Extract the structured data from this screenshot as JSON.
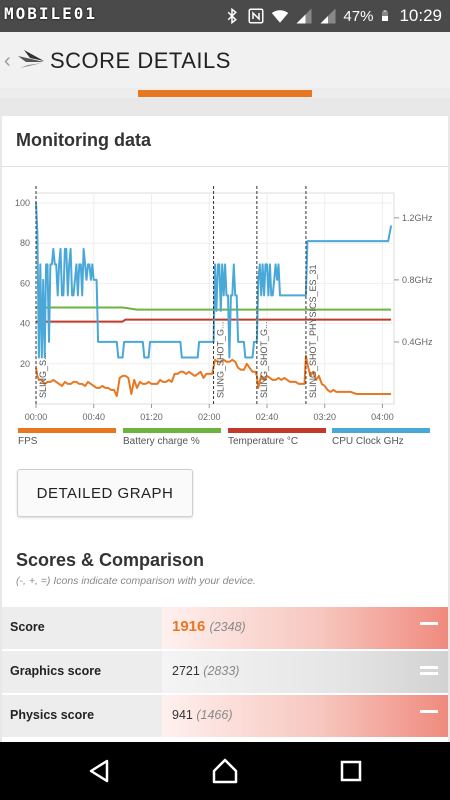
{
  "status_bar": {
    "watermark": "MOBILE01",
    "battery_pct": "47%",
    "time": "10:29",
    "icons": [
      "bluetooth-icon",
      "nfc-icon",
      "wifi-icon",
      "signal-icon",
      "signal-icon",
      "battery-icon"
    ]
  },
  "app_bar": {
    "title": "SCORE DETAILS",
    "back_glyph": "‹",
    "accent": "#e87722"
  },
  "monitoring": {
    "title": "Monitoring data",
    "button_label": "DETAILED GRAPH",
    "legend": [
      {
        "name": "FPS",
        "color": "#e87722"
      },
      {
        "name": "Battery charge %",
        "color": "#6cb33f"
      },
      {
        "name": "Temperature °C",
        "color": "#c0392b"
      },
      {
        "name": "CPU Clock GHz",
        "color": "#4aa8d8"
      }
    ]
  },
  "chart_data": {
    "type": "line",
    "x_tick_labels": [
      "00:00",
      "00:40",
      "01:20",
      "02:00",
      "02:40",
      "03:20",
      "04:00"
    ],
    "x_ticks_sec": [
      0,
      40,
      80,
      120,
      160,
      200,
      240
    ],
    "xlim_sec": [
      0,
      248
    ],
    "y_left_ticks": [
      20,
      40,
      60,
      80,
      100
    ],
    "ylim_left": [
      0,
      105
    ],
    "y_right_ticks": [
      0.4,
      0.8,
      1.2
    ],
    "y_right_tick_labels": [
      "0.4GHz",
      "0.8GHz",
      "1.2GHz"
    ],
    "ylim_right": [
      0,
      1.36
    ],
    "grid": true,
    "markers": [
      {
        "x_sec": 0,
        "label": "SLING_S..."
      },
      {
        "x_sec": 123,
        "label": "SLING_SHOT_G..."
      },
      {
        "x_sec": 153,
        "label": "SLING_SHOT_G..."
      },
      {
        "x_sec": 187,
        "label": "SLING_SHOT_PHYSICS_ES_31"
      }
    ],
    "series": [
      {
        "name": "FPS",
        "axis": "left",
        "points": [
          [
            0,
            18
          ],
          [
            1,
            14
          ],
          [
            2,
            12
          ],
          [
            4,
            12
          ],
          [
            6,
            10
          ],
          [
            8,
            11
          ],
          [
            10,
            11
          ],
          [
            12,
            12
          ],
          [
            14,
            11
          ],
          [
            16,
            10
          ],
          [
            18,
            9
          ],
          [
            20,
            11
          ],
          [
            22,
            10
          ],
          [
            24,
            10
          ],
          [
            26,
            11
          ],
          [
            28,
            11
          ],
          [
            30,
            10
          ],
          [
            32,
            10
          ],
          [
            34,
            9
          ],
          [
            36,
            11
          ],
          [
            38,
            10
          ],
          [
            40,
            9
          ],
          [
            42,
            8
          ],
          [
            44,
            8
          ],
          [
            46,
            9
          ],
          [
            48,
            8
          ],
          [
            50,
            8
          ],
          [
            52,
            7
          ],
          [
            54,
            7
          ],
          [
            56,
            4
          ],
          [
            58,
            13
          ],
          [
            60,
            14
          ],
          [
            62,
            14
          ],
          [
            64,
            13
          ],
          [
            66,
            5
          ],
          [
            68,
            12
          ],
          [
            70,
            8
          ],
          [
            72,
            11
          ],
          [
            74,
            10
          ],
          [
            76,
            10
          ],
          [
            78,
            11
          ],
          [
            80,
            10
          ],
          [
            82,
            10
          ],
          [
            84,
            10
          ],
          [
            86,
            12
          ],
          [
            88,
            11
          ],
          [
            90,
            11
          ],
          [
            92,
            12
          ],
          [
            94,
            11
          ],
          [
            96,
            15
          ],
          [
            98,
            15
          ],
          [
            100,
            16
          ],
          [
            102,
            16
          ],
          [
            104,
            15
          ],
          [
            106,
            16
          ],
          [
            108,
            15
          ],
          [
            110,
            14
          ],
          [
            112,
            15
          ],
          [
            114,
            16
          ],
          [
            116,
            13
          ],
          [
            118,
            15
          ],
          [
            120,
            15
          ],
          [
            122,
            15
          ],
          [
            124,
            22
          ],
          [
            126,
            21
          ],
          [
            128,
            21
          ],
          [
            130,
            22
          ],
          [
            132,
            21
          ],
          [
            134,
            21
          ],
          [
            136,
            22
          ],
          [
            138,
            21
          ],
          [
            140,
            18
          ],
          [
            142,
            17
          ],
          [
            144,
            17
          ],
          [
            146,
            20
          ],
          [
            148,
            18
          ],
          [
            150,
            16
          ],
          [
            152,
            16
          ],
          [
            153,
            14
          ],
          [
            154,
            8
          ],
          [
            156,
            14
          ],
          [
            158,
            12
          ],
          [
            160,
            14
          ],
          [
            162,
            13
          ],
          [
            164,
            12
          ],
          [
            166,
            12
          ],
          [
            168,
            13
          ],
          [
            170,
            12
          ],
          [
            172,
            13
          ],
          [
            174,
            12
          ],
          [
            176,
            11
          ],
          [
            178,
            11
          ],
          [
            180,
            11
          ],
          [
            182,
            10
          ],
          [
            184,
            10
          ],
          [
            186,
            10
          ],
          [
            187,
            24
          ],
          [
            188,
            20
          ],
          [
            190,
            14
          ],
          [
            192,
            16
          ],
          [
            194,
            12
          ],
          [
            196,
            14
          ],
          [
            198,
            10
          ],
          [
            200,
            9
          ],
          [
            202,
            7
          ],
          [
            204,
            6
          ],
          [
            206,
            7
          ],
          [
            208,
            6
          ],
          [
            210,
            6
          ],
          [
            214,
            6
          ],
          [
            218,
            6
          ],
          [
            222,
            5
          ],
          [
            226,
            5
          ],
          [
            230,
            5
          ],
          [
            234,
            5
          ],
          [
            238,
            5
          ],
          [
            242,
            5
          ],
          [
            246,
            5
          ]
        ]
      },
      {
        "name": "Battery charge %",
        "axis": "left",
        "points": [
          [
            0,
            48
          ],
          [
            20,
            48
          ],
          [
            40,
            48
          ],
          [
            60,
            48
          ],
          [
            70,
            47
          ],
          [
            100,
            47
          ],
          [
            123,
            47
          ],
          [
            140,
            47
          ],
          [
            160,
            47
          ],
          [
            180,
            47
          ],
          [
            200,
            47
          ],
          [
            220,
            47
          ],
          [
            246,
            47
          ]
        ]
      },
      {
        "name": "Temperature °C",
        "axis": "left",
        "points": [
          [
            0,
            41
          ],
          [
            20,
            41
          ],
          [
            40,
            41
          ],
          [
            60,
            41
          ],
          [
            62,
            42
          ],
          [
            80,
            42
          ],
          [
            100,
            42
          ],
          [
            123,
            42
          ],
          [
            140,
            42
          ],
          [
            160,
            42
          ],
          [
            180,
            42
          ],
          [
            200,
            42
          ],
          [
            220,
            42
          ],
          [
            246,
            42
          ]
        ]
      },
      {
        "name": "CPU Clock GHz",
        "axis": "right",
        "points": [
          [
            0,
            1.3
          ],
          [
            1,
            1.1
          ],
          [
            2,
            0.3
          ],
          [
            3,
            0.9
          ],
          [
            4,
            0.3
          ],
          [
            5,
            0.8
          ],
          [
            6,
            0.3
          ],
          [
            7,
            0.9
          ],
          [
            8,
            0.9
          ],
          [
            9,
            0.4
          ],
          [
            10,
            0.9
          ],
          [
            11,
            0.9
          ],
          [
            12,
            1.0
          ],
          [
            13,
            0.9
          ],
          [
            14,
            0.9
          ],
          [
            15,
            0.7
          ],
          [
            16,
            0.9
          ],
          [
            17,
            1.0
          ],
          [
            18,
            0.7
          ],
          [
            19,
            0.7
          ],
          [
            20,
            1.0
          ],
          [
            21,
            1.0
          ],
          [
            22,
            0.7
          ],
          [
            23,
            0.9
          ],
          [
            24,
            1.0
          ],
          [
            25,
            0.7
          ],
          [
            26,
            0.7
          ],
          [
            28,
            0.9
          ],
          [
            29,
            0.7
          ],
          [
            30,
            0.9
          ],
          [
            31,
            0.9
          ],
          [
            32,
            0.7
          ],
          [
            33,
            1.0
          ],
          [
            34,
            0.9
          ],
          [
            35,
            0.8
          ],
          [
            36,
            0.9
          ],
          [
            37,
            0.9
          ],
          [
            38,
            0.8
          ],
          [
            39,
            0.9
          ],
          [
            40,
            0.8
          ],
          [
            42,
            0.8
          ],
          [
            43,
            0.4
          ],
          [
            56,
            0.4
          ],
          [
            57,
            0.3
          ],
          [
            60,
            0.3
          ],
          [
            61,
            0.4
          ],
          [
            68,
            0.4
          ],
          [
            69,
            0.4
          ],
          [
            74,
            0.4
          ],
          [
            75,
            0.3
          ],
          [
            78,
            0.3
          ],
          [
            79,
            0.4
          ],
          [
            80,
            0.4
          ],
          [
            100,
            0.4
          ],
          [
            101,
            0.3
          ],
          [
            112,
            0.3
          ],
          [
            113,
            0.4
          ],
          [
            123,
            0.4
          ],
          [
            124,
            0.9
          ],
          [
            125,
            0.6
          ],
          [
            126,
            0.9
          ],
          [
            127,
            0.9
          ],
          [
            128,
            0.6
          ],
          [
            129,
            0.9
          ],
          [
            130,
            0.7
          ],
          [
            131,
            0.9
          ],
          [
            132,
            0.7
          ],
          [
            133,
            0.7
          ],
          [
            134,
            0.3
          ],
          [
            135,
            0.7
          ],
          [
            136,
            0.7
          ],
          [
            137,
            0.9
          ],
          [
            138,
            0.7
          ],
          [
            139,
            0.7
          ],
          [
            140,
            0.4
          ],
          [
            144,
            0.4
          ],
          [
            145,
            0.3
          ],
          [
            150,
            0.3
          ],
          [
            151,
            0.4
          ],
          [
            153,
            0.4
          ],
          [
            154,
            0.8
          ],
          [
            155,
            0.9
          ],
          [
            156,
            0.7
          ],
          [
            157,
            0.9
          ],
          [
            158,
            0.7
          ],
          [
            159,
            0.9
          ],
          [
            160,
            0.9
          ],
          [
            161,
            0.7
          ],
          [
            162,
            0.9
          ],
          [
            163,
            0.7
          ],
          [
            164,
            0.7
          ],
          [
            165,
            0.8
          ],
          [
            166,
            0.9
          ],
          [
            167,
            0.8
          ],
          [
            168,
            0.9
          ],
          [
            169,
            0.7
          ],
          [
            170,
            0.7
          ],
          [
            187,
            0.7
          ],
          [
            188,
            1.05
          ],
          [
            200,
            1.05
          ],
          [
            220,
            1.05
          ],
          [
            244,
            1.05
          ],
          [
            246,
            1.15
          ]
        ]
      }
    ]
  },
  "scores": {
    "title": "Scores & Comparison",
    "subtitle": "(-, +, =) Icons indicate comparison with your device.",
    "rows": [
      {
        "label": "Score",
        "value": "1916",
        "compare": "(2348)",
        "indicator": "minus-icon",
        "highlight": true
      },
      {
        "label": "Graphics score",
        "value": "2721",
        "compare": "(2833)",
        "indicator": "equals-icon",
        "highlight": false
      },
      {
        "label": "Physics score",
        "value": "941",
        "compare": "(1466)",
        "indicator": "minus-icon",
        "highlight": true
      }
    ]
  }
}
